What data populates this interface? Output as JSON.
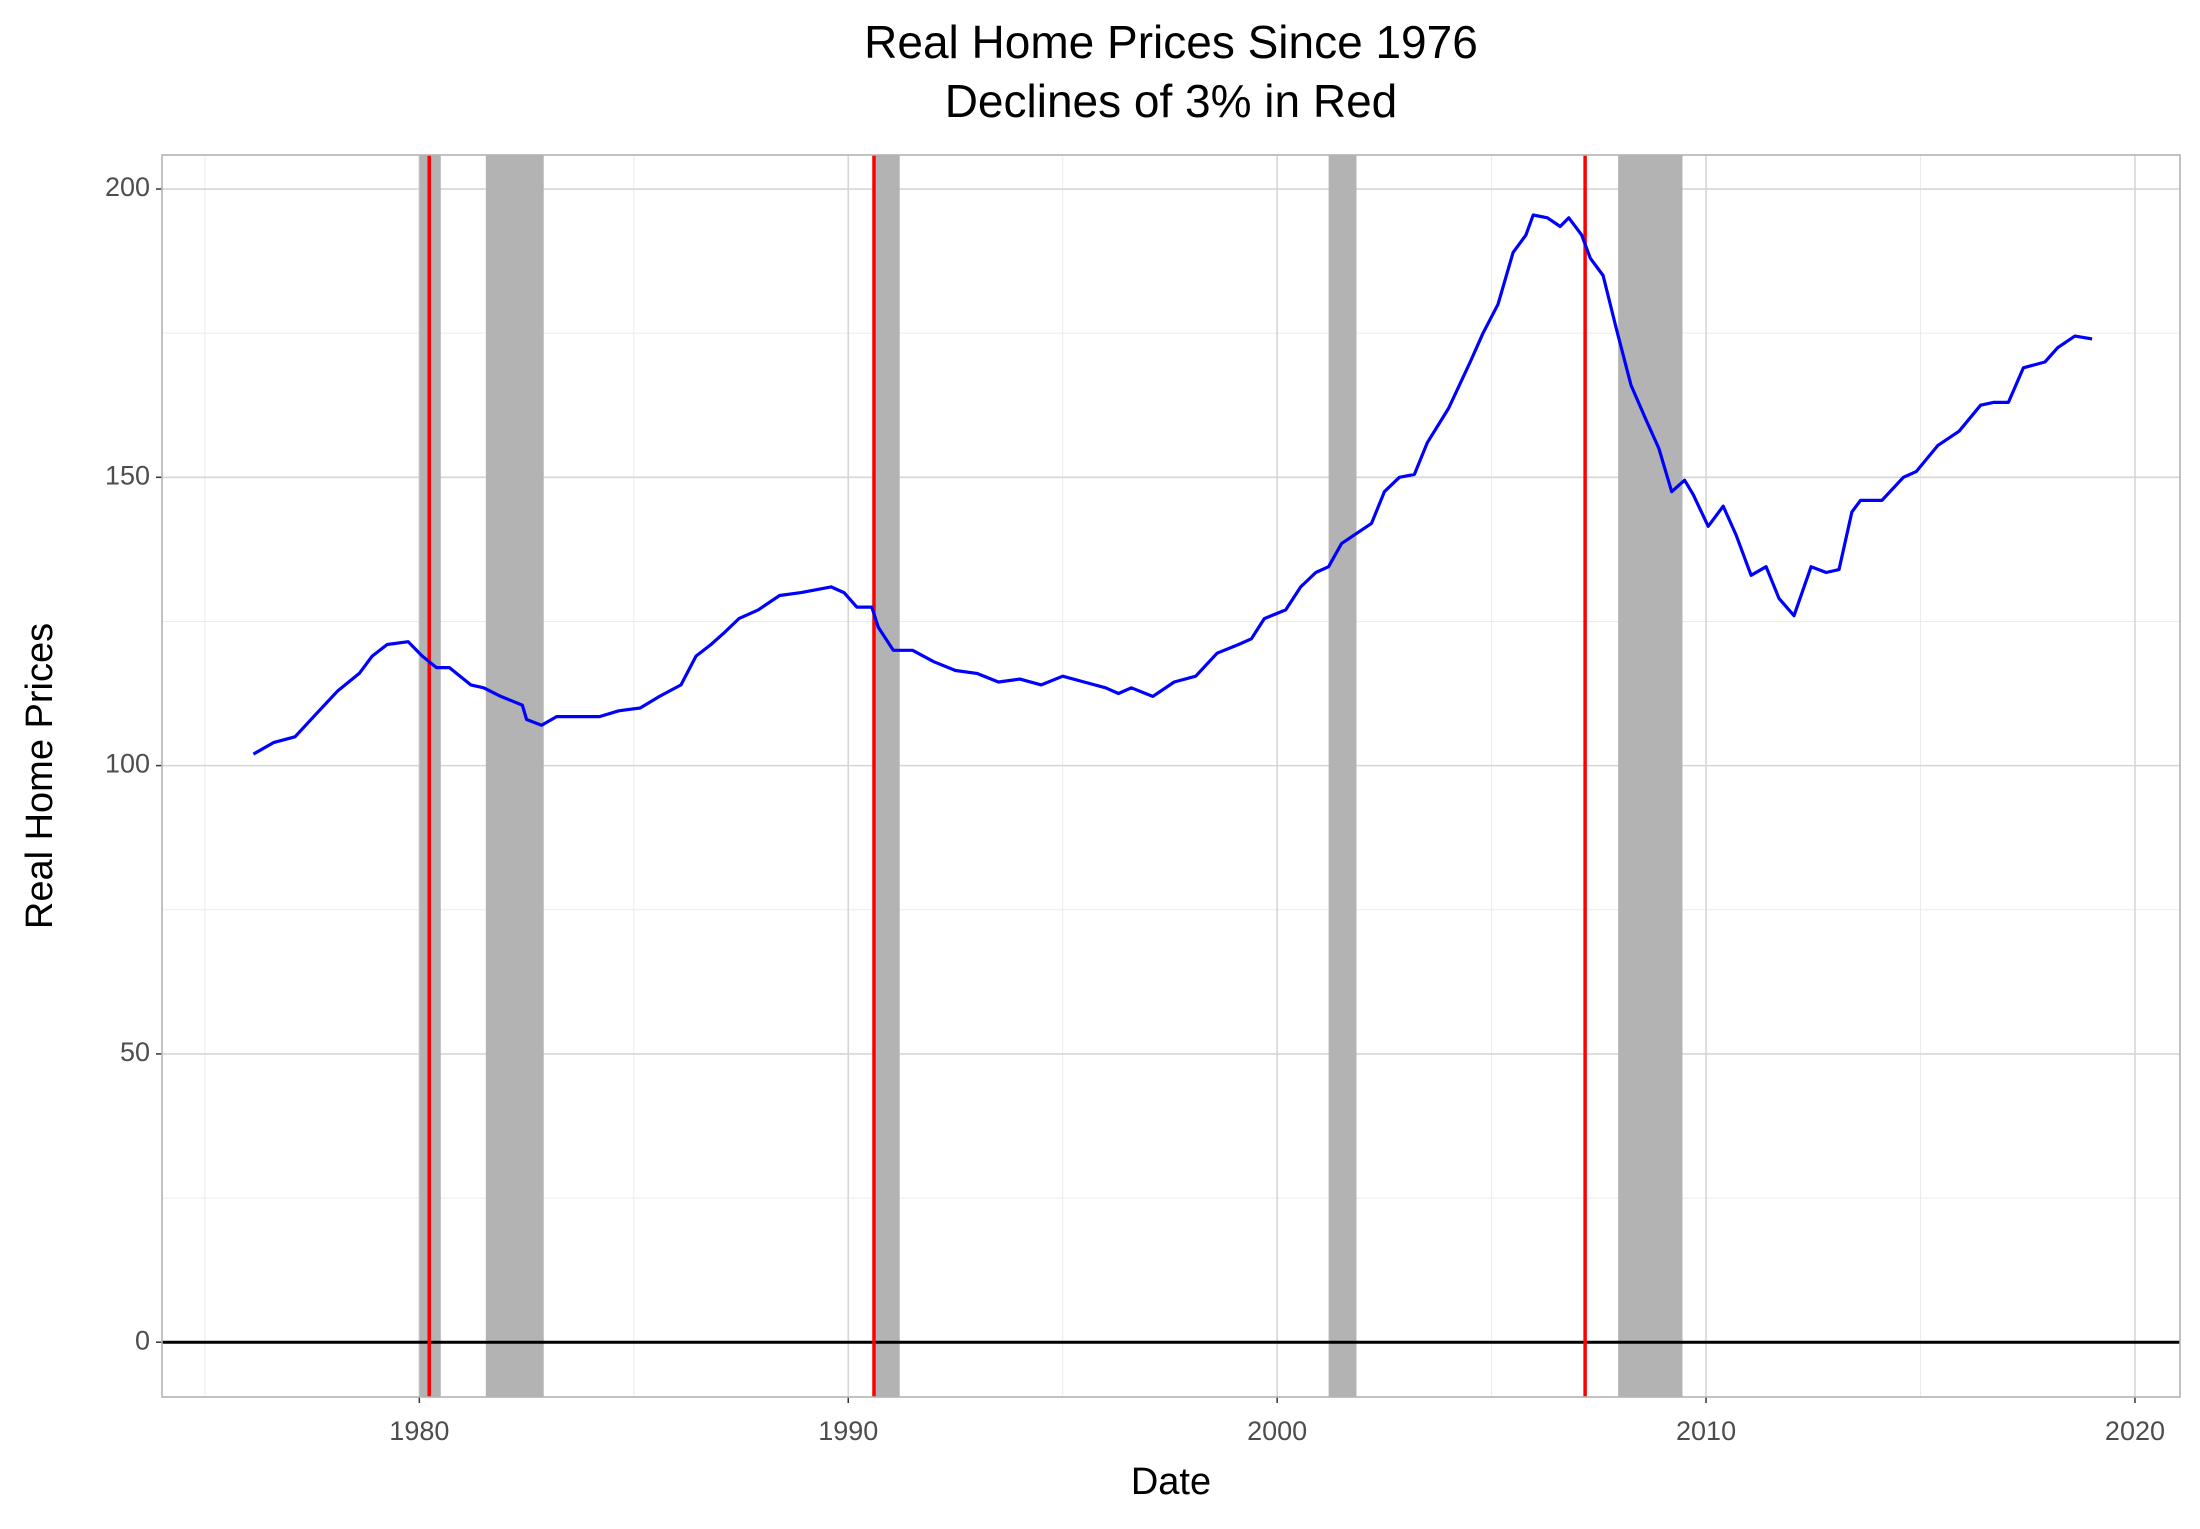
{
  "chart_data": {
    "type": "line",
    "title": "Real Home Prices Since 1976",
    "subtitle": "Declines of 3% in Red",
    "xlabel": "Date",
    "ylabel": "Real Home Prices",
    "xlim": [
      1974.0,
      2021.05
    ],
    "ylim": [
      -9.5,
      205.9
    ],
    "xticks": [
      1980,
      1990,
      2000,
      2010,
      2020
    ],
    "yticks": [
      0,
      50,
      100,
      150,
      200
    ],
    "xminor": [
      1975,
      1985,
      1995,
      2005,
      2015
    ],
    "yminor": [
      25,
      75,
      125,
      175
    ],
    "grid": true,
    "hline": 0,
    "recessions": [
      [
        1980.0,
        1980.5
      ],
      [
        1981.55,
        1982.9
      ],
      [
        1990.6,
        1991.2
      ],
      [
        2001.2,
        2001.85
      ],
      [
        2007.95,
        2009.45
      ]
    ],
    "recession_color": "#b3b3b3",
    "declines": [
      1980.23,
      1990.6,
      2007.18
    ],
    "decline_color": "#ff0000",
    "series": [
      {
        "name": "Real Home Prices",
        "color": "#0000ff",
        "x": [
          1976.13,
          1976.6,
          1977.1,
          1977.6,
          1978.1,
          1978.6,
          1978.9,
          1979.25,
          1979.74,
          1980.07,
          1980.4,
          1980.7,
          1981.2,
          1981.5,
          1981.9,
          1982.4,
          1982.5,
          1982.85,
          1983.2,
          1983.7,
          1984.2,
          1984.65,
          1985.15,
          1985.6,
          1986.1,
          1986.45,
          1986.8,
          1987.1,
          1987.45,
          1987.9,
          1988.4,
          1988.9,
          1989.6,
          1989.9,
          1990.2,
          1990.55,
          1990.7,
          1991.05,
          1991.5,
          1992.0,
          1992.5,
          1993.0,
          1993.5,
          1994.0,
          1994.5,
          1995.0,
          1995.5,
          1996.0,
          1996.3,
          1996.6,
          1997.1,
          1997.6,
          1998.1,
          1998.6,
          1999.1,
          1999.4,
          1999.7,
          2000.2,
          2000.55,
          2000.9,
          2001.2,
          2001.5,
          2001.9,
          2002.2,
          2002.5,
          2002.85,
          2003.2,
          2003.5,
          2004.0,
          2004.5,
          2004.8,
          2005.15,
          2005.5,
          2005.8,
          2005.97,
          2006.3,
          2006.6,
          2006.8,
          2007.1,
          2007.3,
          2007.6,
          2007.9,
          2008.25,
          2008.6,
          2008.9,
          2009.2,
          2009.5,
          2009.7,
          2010.05,
          2010.4,
          2010.7,
          2011.05,
          2011.4,
          2011.7,
          2012.05,
          2012.45,
          2012.8,
          2013.1,
          2013.4,
          2013.6,
          2014.1,
          2014.6,
          2014.9,
          2015.4,
          2015.9,
          2016.4,
          2016.7,
          2017.05,
          2017.4,
          2017.9,
          2018.2,
          2018.6,
          2019.0
        ],
        "values": [
          102,
          104,
          105,
          109,
          113,
          116,
          119,
          121,
          121.5,
          119,
          117,
          117,
          114,
          113.5,
          112,
          110.5,
          108,
          107,
          108.5,
          108.5,
          108.5,
          109.5,
          110,
          112,
          114,
          119,
          121,
          123,
          125.5,
          127,
          129.5,
          130,
          131,
          130,
          127.5,
          127.5,
          124,
          120,
          120,
          118,
          116.5,
          116,
          114.5,
          115,
          114,
          115.5,
          114.5,
          113.5,
          112.5,
          113.5,
          112,
          114.5,
          115.5,
          119.5,
          121,
          122,
          125.5,
          127,
          131,
          133.5,
          134.5,
          138.5,
          140.5,
          142,
          147.5,
          150,
          150.5,
          156,
          162,
          170,
          175,
          180,
          189,
          192,
          195.5,
          195,
          193.5,
          195,
          192,
          188,
          185,
          176,
          166,
          160,
          155,
          147.5,
          149.5,
          147,
          141.5,
          145,
          140,
          133,
          134.5,
          129,
          126,
          134.5,
          133.5,
          134,
          144,
          146,
          146,
          150,
          151,
          155.5,
          158,
          162.5,
          163,
          163,
          169,
          170,
          172.5,
          174.5,
          174
        ]
      }
    ]
  }
}
